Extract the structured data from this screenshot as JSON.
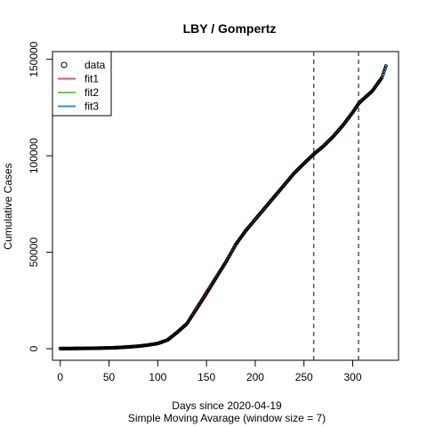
{
  "chart_data": {
    "type": "line",
    "title": "LBY / Gompertz",
    "xlabel": "Days since 2020-04-19",
    "xlabel_sub": "Simple Moving Avarage (window size = 7)",
    "ylabel": "Cumulative Cases",
    "xlim": [
      -8,
      347
    ],
    "ylim": [
      -6000,
      154000
    ],
    "xticks": [
      0,
      50,
      100,
      150,
      200,
      250,
      300
    ],
    "yticks": [
      0,
      50000,
      100000,
      150000
    ],
    "vlines": [
      260,
      306
    ],
    "legend": {
      "position": "top-left",
      "entries": [
        {
          "name": "data",
          "kind": "point",
          "color": "#000000"
        },
        {
          "name": "fit1",
          "kind": "line",
          "color": "#DF536B"
        },
        {
          "name": "fit2",
          "kind": "line",
          "color": "#61D04F"
        },
        {
          "name": "fit3",
          "kind": "line",
          "color": "#2297E6"
        }
      ]
    },
    "data": {
      "x": [
        0,
        10,
        20,
        30,
        40,
        50,
        60,
        70,
        80,
        90,
        100,
        110,
        120,
        130,
        140,
        150,
        160,
        170,
        180,
        190,
        200,
        210,
        220,
        230,
        240,
        250,
        260,
        270,
        280,
        290,
        300,
        306,
        310,
        320,
        330,
        334
      ],
      "y": [
        100,
        100,
        150,
        200,
        300,
        400,
        600,
        900,
        1300,
        1900,
        2700,
        4500,
        8500,
        13000,
        21000,
        29000,
        37000,
        45000,
        54000,
        61000,
        67000,
        73000,
        79000,
        85000,
        91000,
        96000,
        100800,
        105000,
        110000,
        115800,
        122500,
        127000,
        129000,
        133500,
        140500,
        146500
      ]
    },
    "series": [
      {
        "name": "fit1",
        "color": "#DF536B",
        "x": [
          0,
          10,
          20,
          30,
          40,
          50,
          60,
          70,
          80,
          90,
          100,
          110,
          120,
          130,
          140,
          150,
          160,
          170,
          180,
          190,
          200,
          210,
          220,
          230,
          240,
          250,
          260
        ],
        "y": [
          0,
          0,
          0,
          50,
          150,
          300,
          500,
          800,
          1200,
          1800,
          2800,
          4800,
          8200,
          13000,
          19800,
          27500,
          36000,
          45200,
          53500,
          61200,
          67800,
          73500,
          79300,
          85200,
          90800,
          96000,
          100500
        ]
      },
      {
        "name": "fit2",
        "color": "#61D04F",
        "x": [
          260,
          270,
          280,
          290,
          300,
          306
        ],
        "y": [
          100500,
          104600,
          109800,
          116000,
          122800,
          127000
        ]
      },
      {
        "name": "fit3",
        "color": "#2297E6",
        "x": [
          306,
          310,
          315,
          320,
          325,
          330,
          334
        ],
        "y": [
          127000,
          128600,
          131000,
          133600,
          137000,
          141500,
          146900
        ]
      }
    ]
  }
}
